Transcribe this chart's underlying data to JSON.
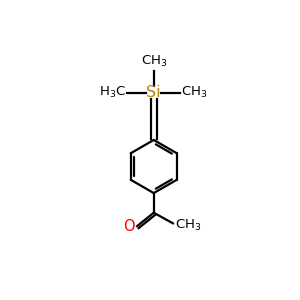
{
  "background_color": "#ffffff",
  "bond_color": "#000000",
  "si_color": "#b8860b",
  "o_color": "#ff0000",
  "line_width": 1.6,
  "fig_size": [
    3.0,
    3.0
  ],
  "dpi": 100,
  "font_size": 9.5
}
